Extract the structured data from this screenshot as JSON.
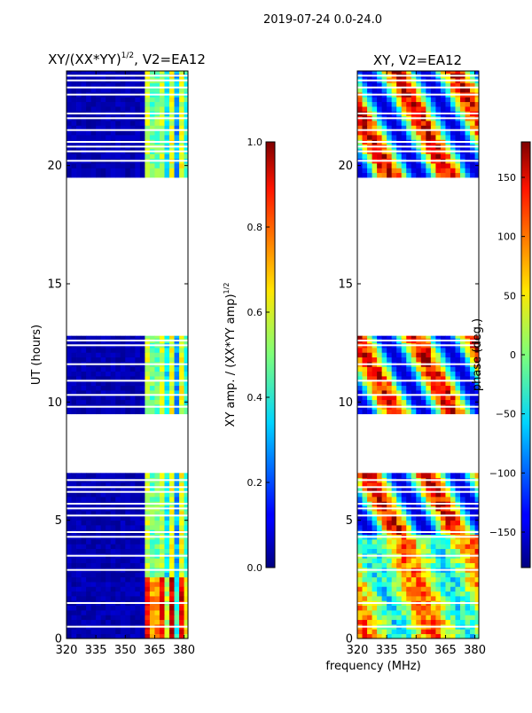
{
  "figure": {
    "suptitle": "2019-07-24 0.0-24.0",
    "shared_xlabel": "frequency (MHz)"
  },
  "chart_data": [
    {
      "type": "heatmap",
      "title": "XY/(XX*YY)",
      "title_sup": "1/2",
      "title_suffix": ", V2=EA12",
      "xlabel": "",
      "ylabel": "UT (hours)",
      "xlim": [
        320,
        382
      ],
      "ylim": [
        0,
        24
      ],
      "xticks": [
        "320",
        "335",
        "350",
        "365",
        "380"
      ],
      "xtick_values": [
        320,
        335,
        350,
        365,
        380
      ],
      "yticks": [
        "0",
        "5",
        "10",
        "15",
        "20"
      ],
      "ytick_values": [
        0,
        5,
        10,
        15,
        20
      ],
      "data_blocks_hours": [
        [
          0,
          7
        ],
        [
          9.5,
          12.8
        ],
        [
          19.5,
          24
        ]
      ],
      "gap_lines_hours": [
        0.5,
        1.5,
        2.9,
        3.5,
        4.3,
        4.5,
        5.2,
        5.5,
        5.7,
        6.2,
        6.4,
        6.7,
        9.8,
        10.3,
        10.9,
        11.6,
        12.4,
        12.6,
        20.2,
        20.6,
        20.8,
        21.0,
        21.5,
        22.0,
        22.2,
        23.0,
        23.3,
        23.6,
        23.8
      ],
      "colorbar": {
        "label": "XY amp. / (XX*YY amp)",
        "label_sup": "1/2",
        "range": [
          0.0,
          1.0
        ],
        "ticks": [
          "0.0",
          "0.2",
          "0.4",
          "0.6",
          "0.8",
          "1.0"
        ],
        "tick_values": [
          0.0,
          0.2,
          0.4,
          0.6,
          0.8,
          1.0
        ]
      }
    },
    {
      "type": "heatmap",
      "title": "XY, V2=EA12",
      "xlabel": "frequency (MHz)",
      "ylabel": "",
      "xlim": [
        320,
        382
      ],
      "ylim": [
        0,
        24
      ],
      "xticks": [
        "320",
        "335",
        "350",
        "365",
        "380"
      ],
      "xtick_values": [
        320,
        335,
        350,
        365,
        380
      ],
      "yticks": [
        "0",
        "5",
        "10",
        "15",
        "20"
      ],
      "ytick_values": [
        0,
        5,
        10,
        15,
        20
      ],
      "data_blocks_hours": [
        [
          0,
          7
        ],
        [
          9.5,
          12.8
        ],
        [
          19.5,
          24
        ]
      ],
      "gap_lines_hours": [
        0.5,
        1.5,
        2.9,
        3.5,
        4.3,
        4.5,
        5.2,
        5.5,
        5.7,
        6.2,
        6.4,
        6.7,
        9.8,
        10.3,
        10.9,
        11.6,
        12.4,
        12.6,
        20.2,
        20.6,
        20.8,
        21.0,
        21.5,
        22.0,
        22.2,
        23.0,
        23.3,
        23.6,
        23.8
      ],
      "colorbar": {
        "label": "phase (deg.)",
        "range": [
          -180,
          180
        ],
        "ticks": [
          "150",
          "100",
          "50",
          "0",
          "−50",
          "−100",
          "−150"
        ],
        "tick_values": [
          150,
          100,
          50,
          0,
          -50,
          -100,
          -150
        ]
      }
    }
  ]
}
